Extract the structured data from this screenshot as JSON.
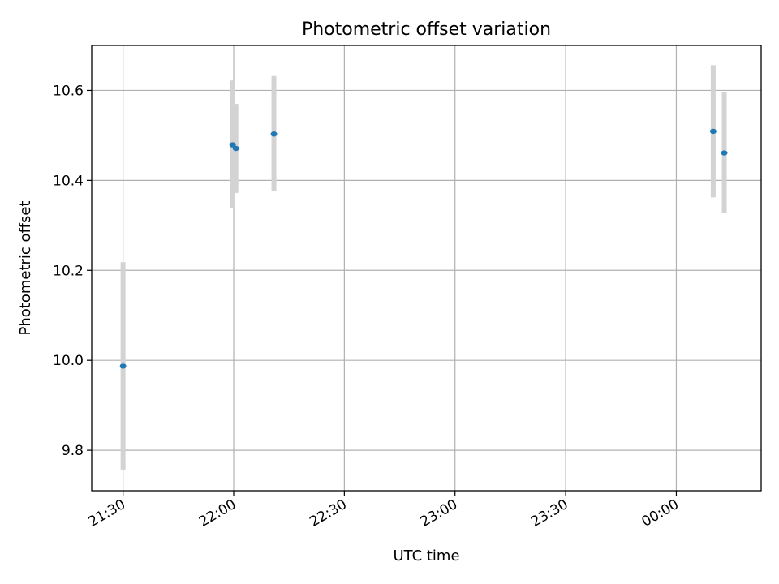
{
  "chart_data": {
    "type": "scatter",
    "title": "Photometric offset variation",
    "xlabel": "UTC time",
    "ylabel": "Photometric offset",
    "x_ticks": [
      "21:30",
      "22:00",
      "22:30",
      "23:00",
      "23:30",
      "00:00"
    ],
    "y_ticks": [
      "9.8",
      "10.0",
      "10.2",
      "10.4",
      "10.6"
    ],
    "xlim": [
      -8.5,
      173
    ],
    "ylim": [
      9.71,
      10.7
    ],
    "grid": true,
    "x_unit_note": "",
    "points": [
      {
        "x": 0.0,
        "y": 9.987,
        "err_low": 9.757,
        "err_high": 10.218
      },
      {
        "x": 29.7,
        "y": 10.479,
        "err_low": 10.338,
        "err_high": 10.622
      },
      {
        "x": 30.6,
        "y": 10.471,
        "err_low": 10.372,
        "err_high": 10.57
      },
      {
        "x": 40.9,
        "y": 10.503,
        "err_low": 10.377,
        "err_high": 10.632
      },
      {
        "x": 160.0,
        "y": 10.509,
        "err_low": 10.362,
        "err_high": 10.656
      },
      {
        "x": 163.0,
        "y": 10.461,
        "err_low": 10.327,
        "err_high": 10.596
      }
    ],
    "colors": {
      "point": "#1f77b4",
      "errorbar": "#d3d3d3",
      "grid": "#b0b0b0",
      "axis": "#000000"
    }
  }
}
